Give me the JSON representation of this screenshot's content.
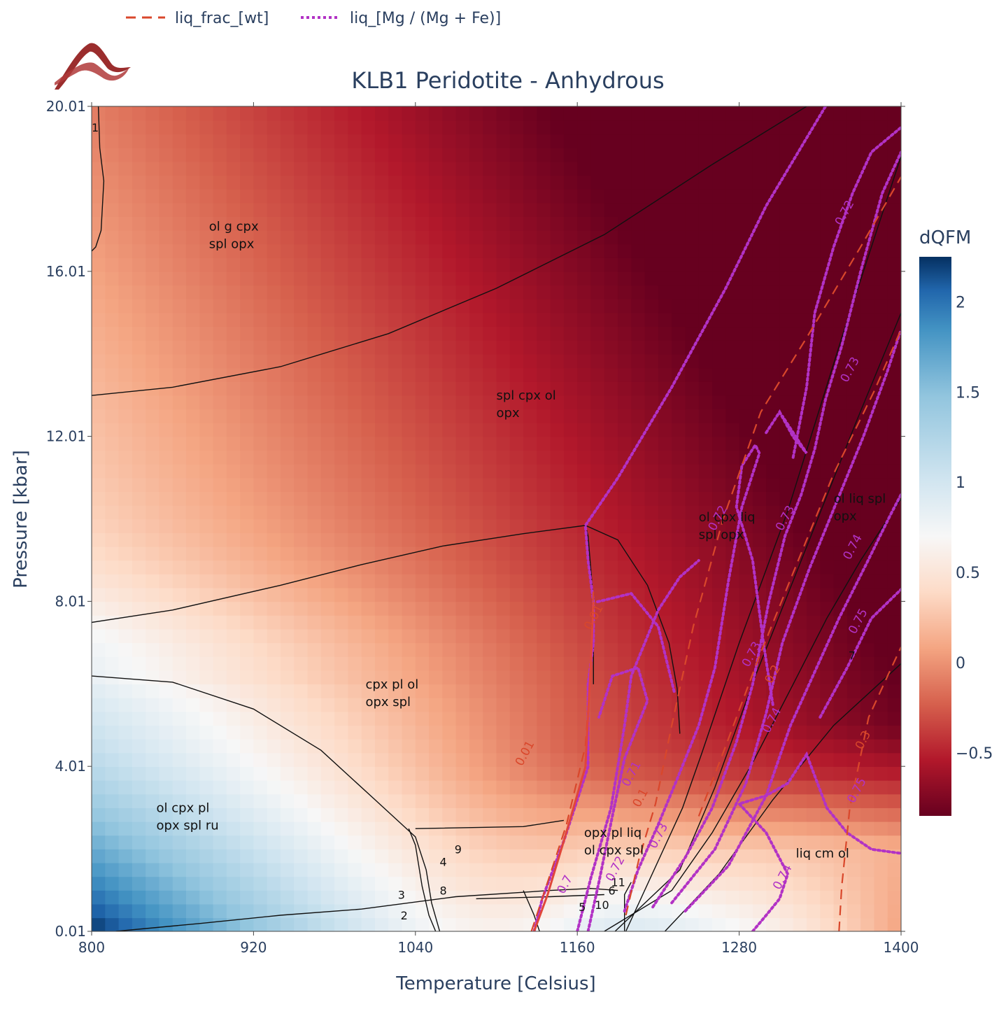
{
  "chart_data": {
    "type": "heatmap",
    "title": "KLB1 Peridotite - Anhydrous",
    "xlabel": "Temperature [Celsius]",
    "ylabel": "Pressure [kbar]",
    "xlim": [
      800,
      1400
    ],
    "ylim": [
      0.01,
      20.01
    ],
    "xticks": [
      800,
      920,
      1040,
      1160,
      1280,
      1400
    ],
    "xtick_labels": [
      "800",
      "920",
      "1040",
      "1160",
      "1280",
      "1400"
    ],
    "yticks": [
      0.01,
      4.01,
      8.01,
      12.01,
      16.01,
      20.01
    ],
    "ytick_labels": [
      "0.01",
      "4.01",
      "8.01",
      "12.01",
      "16.01",
      "20.01"
    ],
    "colorbar": {
      "title": "dQFM",
      "range": [
        -0.85,
        2.25
      ],
      "ticks": [
        -0.5,
        0,
        0.5,
        1,
        1.5,
        2
      ],
      "tick_labels": [
        "−0.5",
        "0",
        "0.5",
        "1",
        "1.5",
        "2"
      ],
      "colorscale": [
        [
          0.0,
          "#67001f"
        ],
        [
          0.1,
          "#b2182b"
        ],
        [
          0.2,
          "#d6604d"
        ],
        [
          0.3,
          "#f4a582"
        ],
        [
          0.4,
          "#fddbc7"
        ],
        [
          0.5,
          "#f7f7f7"
        ],
        [
          0.6,
          "#d1e5f0"
        ],
        [
          0.75,
          "#92c5de"
        ],
        [
          0.87,
          "#4393c3"
        ],
        [
          0.94,
          "#2166ac"
        ],
        [
          1.0,
          "#053061"
        ]
      ]
    },
    "legend": {
      "position": "top-left",
      "entries": [
        {
          "name": "liq_frac_[wt]",
          "style": "dash",
          "color": "#d9472b"
        },
        {
          "name": "liq_[Mg / (Mg + Fe)]",
          "style": "dot",
          "color": "#b232c5"
        }
      ]
    },
    "phase_fields": [
      {
        "lines": [
          "ol g cpx",
          "spl opx"
        ],
        "T": 887,
        "P": 17.0
      },
      {
        "lines": [
          "spl cpx ol",
          "opx"
        ],
        "T": 1100,
        "P": 12.9
      },
      {
        "lines": [
          "ol cpx liq",
          "spl opx"
        ],
        "T": 1250,
        "P": 9.95
      },
      {
        "lines": [
          "ol liq spl",
          "opx"
        ],
        "T": 1350,
        "P": 10.4
      },
      {
        "lines": [
          "cpx pl ol",
          "opx spl"
        ],
        "T": 1003,
        "P": 5.9
      },
      {
        "lines": [
          "ol cpx pl",
          "opx spl ru"
        ],
        "T": 848,
        "P": 2.9
      },
      {
        "lines": [
          "opx pl liq",
          "ol cpx spl"
        ],
        "T": 1165,
        "P": 2.3
      },
      {
        "lines": [
          "liq cm ol"
        ],
        "T": 1322,
        "P": 1.8
      }
    ],
    "field_numbers": [
      {
        "label": "1",
        "T": 800,
        "P": 19.4
      },
      {
        "label": "2",
        "T": 1029,
        "P": 0.3
      },
      {
        "label": "3",
        "T": 1027,
        "P": 0.8
      },
      {
        "label": "4",
        "T": 1058,
        "P": 1.6
      },
      {
        "label": "5",
        "T": 1161,
        "P": 0.5
      },
      {
        "label": "6",
        "T": 1183,
        "P": 0.9
      },
      {
        "label": "7",
        "T": 1361,
        "P": 6.6
      },
      {
        "label": "8",
        "T": 1058,
        "P": 0.9
      },
      {
        "label": "9",
        "T": 1069,
        "P": 1.9
      },
      {
        "label": "10",
        "T": 1173,
        "P": 0.55
      },
      {
        "label": "11",
        "T": 1185,
        "P": 1.1
      }
    ],
    "contour_labels": {
      "liq_frac_[wt]": [
        {
          "label": "0.1",
          "T": 1206,
          "P": 3.0
        },
        {
          "label": "0.2",
          "T": 1304,
          "P": 6.0
        },
        {
          "label": "0.3",
          "T": 1371,
          "P": 4.4
        },
        {
          "label": "0.01",
          "T": 1119,
          "P": 4.0
        },
        {
          "label": "0.01",
          "T": 1170,
          "P": 7.3
        }
      ],
      "liq_[Mg / (Mg + Fe)]": [
        {
          "label": "0.71",
          "T": 1198,
          "P": 3.5
        },
        {
          "label": "0.72",
          "T": 1186,
          "P": 1.2
        },
        {
          "label": "0.72",
          "T": 1262,
          "P": 9.7
        },
        {
          "label": "0.72",
          "T": 1356,
          "P": 17.1
        },
        {
          "label": "0.73",
          "T": 1218,
          "P": 2.0
        },
        {
          "label": "0.73",
          "T": 1287,
          "P": 6.4
        },
        {
          "label": "0.73",
          "T": 1360,
          "P": 13.3
        },
        {
          "label": "0.73",
          "T": 1312,
          "P": 9.7
        },
        {
          "label": "0.74",
          "T": 1302,
          "P": 4.8
        },
        {
          "label": "0.74",
          "T": 1362,
          "P": 9.0
        },
        {
          "label": "0.74",
          "T": 1310,
          "P": 1.0
        },
        {
          "label": "0.75",
          "T": 1366,
          "P": 7.2
        },
        {
          "label": "0.75",
          "T": 1365,
          "P": 3.1
        },
        {
          "label": "0.7",
          "T": 1150,
          "P": 0.9
        }
      ]
    }
  },
  "icons": {
    "logo": "mountain-wave-logo"
  }
}
